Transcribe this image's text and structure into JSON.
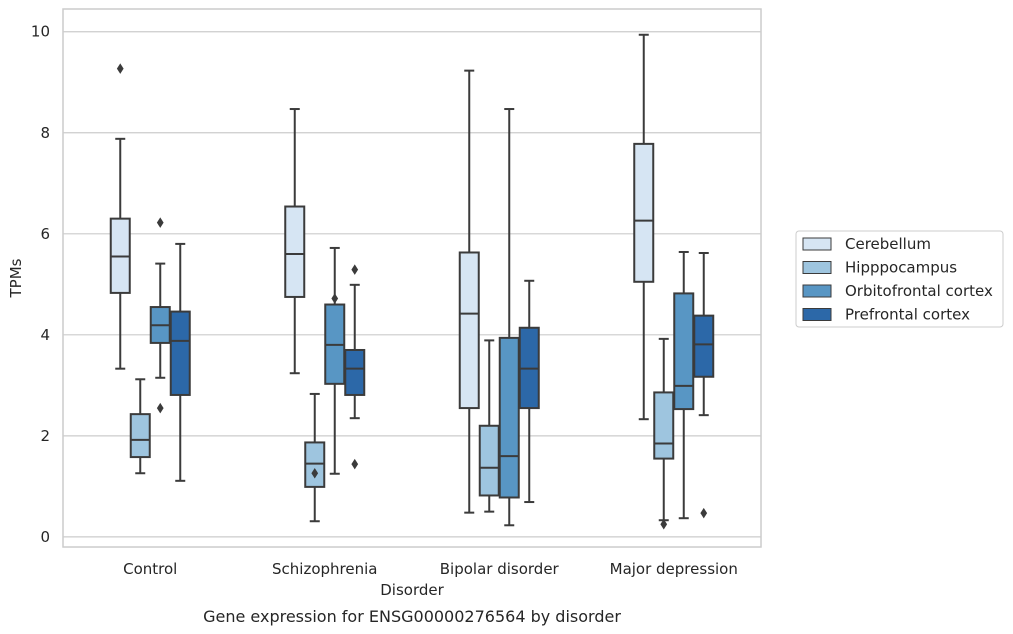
{
  "chart_data": {
    "type": "box",
    "xlabel": "Disorder",
    "ylabel": "TPMs",
    "caption": "Gene expression for ENSG00000276564 by disorder",
    "ylim": [
      -0.2,
      10.45
    ],
    "yticks": [
      0,
      2,
      4,
      6,
      8,
      10
    ],
    "grid": "horizontal",
    "legend_position": "right",
    "categories": [
      "Control",
      "Schizophrenia",
      "Bipolar disorder",
      "Major depression"
    ],
    "series": [
      {
        "name": "Cerebellum",
        "color": "#d6e5f3",
        "boxes": [
          {
            "whisker_low": 3.33,
            "q1": 4.83,
            "median": 5.55,
            "q3": 6.3,
            "whisker_high": 7.88,
            "outliers": [
              9.27
            ]
          },
          {
            "whisker_low": 3.24,
            "q1": 4.75,
            "median": 5.6,
            "q3": 6.54,
            "whisker_high": 8.47,
            "outliers": []
          },
          {
            "whisker_low": 0.48,
            "q1": 2.55,
            "median": 4.42,
            "q3": 5.63,
            "whisker_high": 9.23,
            "outliers": []
          },
          {
            "whisker_low": 2.33,
            "q1": 5.05,
            "median": 6.26,
            "q3": 7.78,
            "whisker_high": 9.94,
            "outliers": []
          }
        ]
      },
      {
        "name": "Hipppocampus",
        "color": "#9ec5df",
        "boxes": [
          {
            "whisker_low": 1.26,
            "q1": 1.58,
            "median": 1.92,
            "q3": 2.43,
            "whisker_high": 3.12,
            "outliers": []
          },
          {
            "whisker_low": 0.31,
            "q1": 0.99,
            "median": 1.45,
            "q3": 1.87,
            "whisker_high": 2.83,
            "outliers": [
              1.26
            ]
          },
          {
            "whisker_low": 0.5,
            "q1": 0.82,
            "median": 1.37,
            "q3": 2.2,
            "whisker_high": 3.89,
            "outliers": []
          },
          {
            "whisker_low": 0.33,
            "q1": 1.55,
            "median": 1.85,
            "q3": 2.86,
            "whisker_high": 3.92,
            "outliers": [
              0.25
            ]
          }
        ]
      },
      {
        "name": "Orbitofrontal cortex",
        "color": "#5896c4",
        "boxes": [
          {
            "whisker_low": 3.15,
            "q1": 3.84,
            "median": 4.19,
            "q3": 4.55,
            "whisker_high": 5.41,
            "outliers": [
              6.22,
              2.55
            ]
          },
          {
            "whisker_low": 1.25,
            "q1": 3.03,
            "median": 3.8,
            "q3": 4.6,
            "whisker_high": 5.72,
            "outliers": [
              4.72
            ]
          },
          {
            "whisker_low": 0.23,
            "q1": 0.78,
            "median": 1.6,
            "q3": 3.94,
            "whisker_high": 8.47,
            "outliers": []
          },
          {
            "whisker_low": 0.37,
            "q1": 2.53,
            "median": 2.99,
            "q3": 4.82,
            "whisker_high": 5.64,
            "outliers": []
          }
        ]
      },
      {
        "name": "Prefrontal cortex",
        "color": "#2c68a8",
        "boxes": [
          {
            "whisker_low": 1.11,
            "q1": 2.81,
            "median": 3.88,
            "q3": 4.46,
            "whisker_high": 5.8,
            "outliers": []
          },
          {
            "whisker_low": 2.35,
            "q1": 2.81,
            "median": 3.33,
            "q3": 3.7,
            "whisker_high": 4.99,
            "outliers": [
              5.29,
              1.44
            ]
          },
          {
            "whisker_low": 0.69,
            "q1": 2.55,
            "median": 3.33,
            "q3": 4.14,
            "whisker_high": 5.07,
            "outliers": []
          },
          {
            "whisker_low": 2.41,
            "q1": 3.17,
            "median": 3.81,
            "q3": 4.38,
            "whisker_high": 5.62,
            "outliers": [
              0.47
            ]
          }
        ]
      }
    ]
  }
}
